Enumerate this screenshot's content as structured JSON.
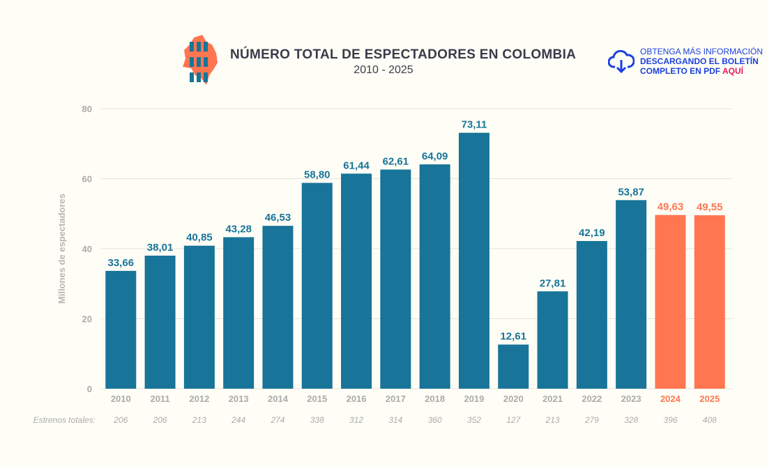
{
  "header": {
    "title": "NÚMERO TOTAL DE ESPECTADORES EN COLOMBIA",
    "subtitle": "2010 - 2025",
    "download": {
      "line1": "OBTENGA MÁS INFORMACIÓN",
      "line2": "DESCARGANDO EL BOLETÍN",
      "line3": "COMPLETO EN PDF",
      "link": "AQUÍ",
      "icon": "cloud-download-icon"
    },
    "logo_icon": "colombia-map-people-icon"
  },
  "colors": {
    "bar": "#187499",
    "highlight": "#ff7650",
    "label": "#187499",
    "axis_text": "#aaaaaa",
    "background": "#fffef6"
  },
  "chart_data": {
    "type": "bar",
    "title": "NÚMERO TOTAL DE ESPECTADORES EN COLOMBIA",
    "subtitle": "2010 - 2025",
    "ylabel": "Millones de espectadores",
    "xlabel": "",
    "ylim": [
      0,
      80
    ],
    "yticks": [
      0,
      20,
      40,
      60,
      80
    ],
    "grid": true,
    "categories": [
      "2010",
      "2011",
      "2012",
      "2013",
      "2014",
      "2015",
      "2016",
      "2017",
      "2018",
      "2019",
      "2020",
      "2021",
      "2022",
      "2023",
      "2024",
      "2025"
    ],
    "values": [
      33.66,
      38.01,
      40.85,
      43.28,
      46.53,
      58.8,
      61.44,
      62.61,
      64.09,
      73.11,
      12.61,
      27.81,
      42.19,
      53.87,
      49.63,
      49.55
    ],
    "data_labels": [
      "33,66",
      "38,01",
      "40,85",
      "43,28",
      "46,53",
      "58,80",
      "61,44",
      "62,61",
      "64,09",
      "73,11",
      "12,61",
      "27,81",
      "42,19",
      "53,87",
      "49,63",
      "49,55"
    ],
    "highlighted": [
      "2024",
      "2025"
    ],
    "secondary_row": {
      "label": "Estrenos totales:",
      "values": [
        206,
        206,
        213,
        244,
        274,
        338,
        312,
        314,
        360,
        352,
        127,
        213,
        279,
        328,
        396,
        408
      ]
    }
  }
}
